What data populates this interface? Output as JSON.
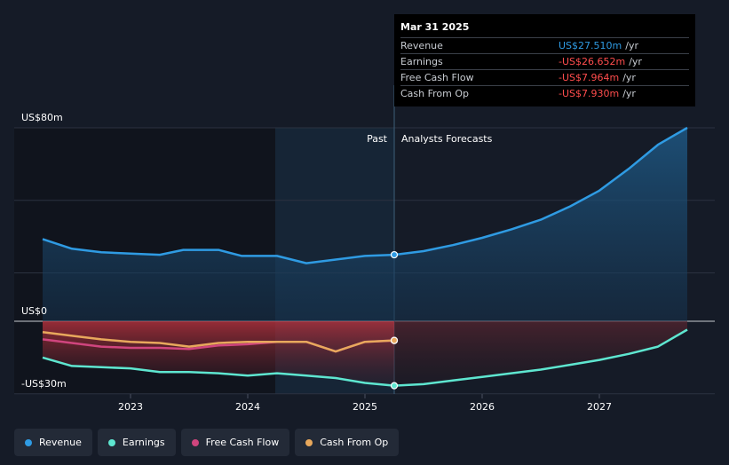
{
  "chart_data": {
    "type": "line",
    "x_ticks": [
      "2023",
      "2024",
      "2025",
      "2026",
      "2027"
    ],
    "y_labels": {
      "top": "US$80m",
      "zero": "US$0",
      "bottom": "-US$30m"
    },
    "ylim": [
      -30,
      80
    ],
    "divider_labels": {
      "past": "Past",
      "forecast": "Analysts Forecasts"
    },
    "series": [
      {
        "name": "Revenue",
        "color": "#2f9be3",
        "points": [
          [
            2022.25,
            34
          ],
          [
            2022.5,
            30
          ],
          [
            2022.75,
            28.5
          ],
          [
            2023.0,
            28
          ],
          [
            2023.25,
            27.5
          ],
          [
            2023.45,
            29.5
          ],
          [
            2023.75,
            29.5
          ],
          [
            2023.95,
            27
          ],
          [
            2024.25,
            27
          ],
          [
            2024.5,
            24
          ],
          [
            2024.75,
            25.5
          ],
          [
            2025.0,
            27
          ],
          [
            2025.25,
            27.5
          ],
          [
            2025.5,
            29
          ],
          [
            2025.75,
            31.5
          ],
          [
            2026.0,
            34.5
          ],
          [
            2026.25,
            38
          ],
          [
            2026.5,
            42
          ],
          [
            2026.75,
            47.5
          ],
          [
            2027.0,
            54
          ],
          [
            2027.25,
            63
          ],
          [
            2027.5,
            73
          ],
          [
            2027.75,
            80
          ]
        ]
      },
      {
        "name": "Earnings",
        "color": "#5ee6d0",
        "points": [
          [
            2022.25,
            -15
          ],
          [
            2022.5,
            -18.5
          ],
          [
            2022.75,
            -19
          ],
          [
            2023.0,
            -19.5
          ],
          [
            2023.25,
            -21
          ],
          [
            2023.5,
            -21
          ],
          [
            2023.75,
            -21.5
          ],
          [
            2024.0,
            -22.5
          ],
          [
            2024.25,
            -21.5
          ],
          [
            2024.5,
            -22.5
          ],
          [
            2024.75,
            -23.5
          ],
          [
            2025.0,
            -25.5
          ],
          [
            2025.25,
            -26.65
          ],
          [
            2025.5,
            -26
          ],
          [
            2025.75,
            -24.5
          ],
          [
            2026.0,
            -23
          ],
          [
            2026.25,
            -21.5
          ],
          [
            2026.5,
            -20
          ],
          [
            2026.75,
            -18
          ],
          [
            2027.0,
            -16
          ],
          [
            2027.25,
            -13.5
          ],
          [
            2027.5,
            -10.5
          ],
          [
            2027.75,
            -3.5
          ]
        ]
      },
      {
        "name": "Free Cash Flow",
        "color": "#d0457e",
        "points": [
          [
            2022.25,
            -7.5
          ],
          [
            2022.5,
            -9
          ],
          [
            2022.75,
            -10.5
          ],
          [
            2023.0,
            -11
          ],
          [
            2023.25,
            -11
          ],
          [
            2023.5,
            -11.5
          ],
          [
            2023.75,
            -10
          ],
          [
            2024.0,
            -9.5
          ],
          [
            2024.25,
            -8.5
          ],
          [
            2024.5,
            -8.5
          ],
          [
            2024.75,
            -12.5
          ],
          [
            2025.0,
            -8.5
          ],
          [
            2025.25,
            -7.964
          ]
        ]
      },
      {
        "name": "Cash From Op",
        "color": "#e8a85c",
        "points": [
          [
            2022.25,
            -4.5
          ],
          [
            2022.5,
            -6
          ],
          [
            2022.75,
            -7.5
          ],
          [
            2023.0,
            -8.5
          ],
          [
            2023.25,
            -9
          ],
          [
            2023.5,
            -10.5
          ],
          [
            2023.75,
            -9
          ],
          [
            2024.0,
            -8.5
          ],
          [
            2024.25,
            -8.5
          ],
          [
            2024.5,
            -8.5
          ],
          [
            2024.75,
            -12.5
          ],
          [
            2025.0,
            -8.5
          ],
          [
            2025.25,
            -7.93
          ]
        ]
      }
    ],
    "divider_x": 2025.25,
    "tooltip": {
      "date": "Mar 31 2025",
      "rows": [
        {
          "label": "Revenue",
          "value": "US$27.510m",
          "unit": "/yr",
          "color": "#2f9be3"
        },
        {
          "label": "Earnings",
          "value": "-US$26.652m",
          "unit": "/yr",
          "color": "#ff4d4d"
        },
        {
          "label": "Free Cash Flow",
          "value": "-US$7.964m",
          "unit": "/yr",
          "color": "#ff4d4d"
        },
        {
          "label": "Cash From Op",
          "value": "-US$7.930m",
          "unit": "/yr",
          "color": "#ff4d4d"
        }
      ]
    }
  },
  "legend": [
    {
      "label": "Revenue",
      "color": "#2f9be3"
    },
    {
      "label": "Earnings",
      "color": "#5ee6d0"
    },
    {
      "label": "Free Cash Flow",
      "color": "#d0457e"
    },
    {
      "label": "Cash From Op",
      "color": "#e8a85c"
    }
  ]
}
